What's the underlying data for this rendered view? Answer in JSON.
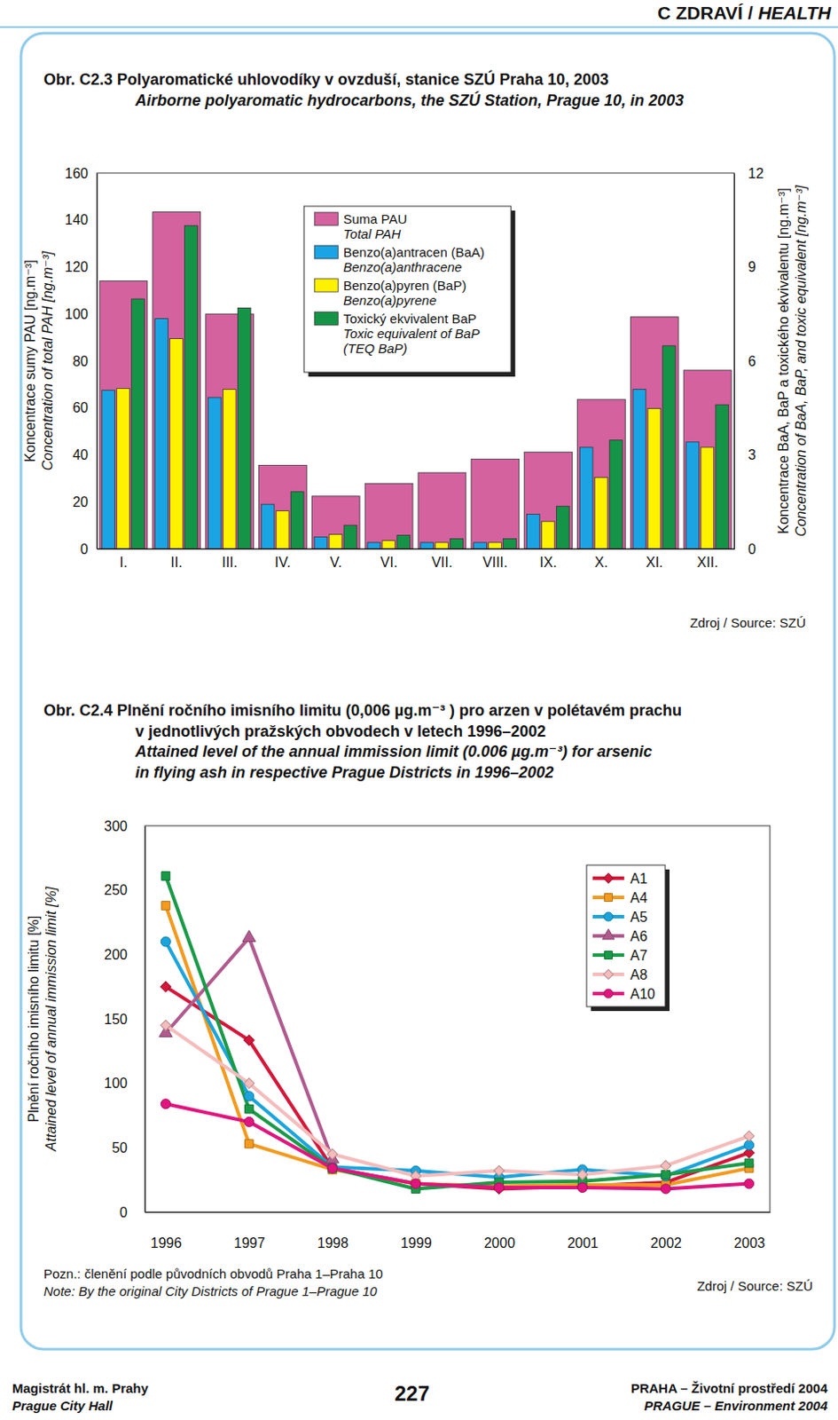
{
  "page": {
    "header": [
      "C ZDRAVÍ /",
      "HEALTH"
    ],
    "footer_left": [
      "Magistrát hl. m. Prahy",
      "Prague City Hall"
    ],
    "page_number": 227,
    "footer_right": [
      "PRAHA – Životní prostředí 2004",
      "PRAGUE – Environment 2004"
    ]
  },
  "chart_data": [
    {
      "type": "bar",
      "title": [
        "Obr. C2.3 Polyaromatické uhlovodíky v ovzduší, stanice SZÚ Praha 10, 2003"
      ],
      "title_en": [
        "Airborne polyaromatic hydrocarbons, the SZÚ Station, Prague 10, in 2003"
      ],
      "categories": [
        "I.",
        "II.",
        "III.",
        "IV.",
        "V.",
        "VI.",
        "VII.",
        "VIII.",
        "IX.",
        "X.",
        "XI.",
        "XII."
      ],
      "ylabel": "Koncentrace sumy PAU [ng.m⁻³]",
      "ylabel_en": "Concentration of total PAH [ng.m⁻³]",
      "y2label": "Koncentrace BaA, BaP a toxického ekvivalentu [ng.m⁻³]",
      "y2label_en": "Concentration of BaA, BaP, and toxic equivalent [ng.m⁻³]",
      "ylim": [
        0,
        160
      ],
      "yticks": [
        0,
        20,
        40,
        60,
        80,
        100,
        120,
        140,
        160
      ],
      "y2lim": [
        0,
        12
      ],
      "y2ticks": [
        0,
        3,
        6,
        9,
        12
      ],
      "grid": false,
      "legend": "top",
      "series": [
        {
          "name": "Suma PAU",
          "name_en": [
            "Total PAH"
          ],
          "color": "#d4629f",
          "values": [
            114,
            143.4,
            100,
            35.5,
            22.4,
            27.8,
            32.4,
            38.2,
            41.2,
            63.6,
            98.7,
            76
          ]
        },
        {
          "name": "Benzo(a)antracen (BaA)",
          "name_en": [
            "Benzo(a)anthracene"
          ],
          "color": "#1ba4e4",
          "axis": "y2",
          "values": [
            5.06,
            7.35,
            4.83,
            1.42,
            0.38,
            0.2,
            0.2,
            0.2,
            1.1,
            3.24,
            5.09,
            3.41
          ]
        },
        {
          "name": "Benzo(a)pyren (BaP)",
          "name_en": [
            "Benzo(a)pyrene"
          ],
          "color": "#fff200",
          "axis": "y2",
          "values": [
            5.12,
            6.71,
            5.09,
            1.21,
            0.46,
            0.26,
            0.2,
            0.2,
            0.87,
            2.28,
            4.48,
            3.24
          ]
        },
        {
          "name": "Toxický ekvivalent BaP",
          "name_en": [
            "Toxic equivalent of BaP",
            "(TEQ BaP)"
          ],
          "color": "#159447",
          "axis": "y2",
          "values": [
            7.98,
            10.32,
            7.69,
            1.82,
            0.75,
            0.43,
            0.32,
            0.32,
            1.36,
            3.47,
            6.48,
            4.6
          ]
        }
      ],
      "source": "Zdroj / Source: SZÚ"
    },
    {
      "type": "line",
      "title": [
        "Obr. C2.4 Plnění ročního imisního limitu (0,006 µg.m⁻³ ) pro arzen v polétavém prachu",
        "v jednotlivých pražských obvodech v letech 1996–2002"
      ],
      "title_en": [
        "Attained level of the annual immission limit (0.006 µg.m⁻³) for arsenic",
        "in flying ash in respective Prague Districts in 1996–2002"
      ],
      "categories": [
        "1996",
        "1997",
        "1998",
        "1999",
        "2000",
        "2001",
        "2002",
        "2003"
      ],
      "ylabel": "Plnění ročního imisního limitu [%]",
      "ylabel_en": "Attained level of annual immission limit [%]",
      "ylim": [
        0,
        300
      ],
      "yticks": [
        0,
        50,
        100,
        150,
        200,
        250,
        300
      ],
      "grid": false,
      "legend": "top right",
      "series": [
        {
          "name": "A1",
          "color": "#d4173a",
          "marker": "diamond",
          "values": [
            175,
            133.5,
            34,
            22,
            18,
            20,
            23,
            46
          ]
        },
        {
          "name": "A4",
          "color": "#f39a1f",
          "marker": "square",
          "values": [
            238,
            53,
            33,
            22,
            20,
            21,
            21,
            34
          ]
        },
        {
          "name": "A5",
          "color": "#1ba4dc",
          "marker": "circle",
          "values": [
            210,
            90,
            35,
            32,
            27,
            33,
            28,
            52
          ]
        },
        {
          "name": "A6",
          "color": "#b05a8e",
          "marker": "triangle",
          "values": [
            139,
            213,
            41,
            null,
            null,
            null,
            null,
            null
          ]
        },
        {
          "name": "A7",
          "color": "#1a9a48",
          "marker": "square",
          "values": [
            261,
            80,
            34,
            18,
            23,
            24,
            29,
            38
          ]
        },
        {
          "name": "A8",
          "color": "#f5bcbc",
          "marker": "diamond",
          "values": [
            145,
            100,
            45,
            28,
            32,
            29,
            36,
            59
          ]
        },
        {
          "name": "A10",
          "color": "#e0157d",
          "marker": "circle",
          "values": [
            84,
            70,
            34,
            22,
            19,
            19,
            18,
            22
          ]
        }
      ],
      "note": "Pozn.: členění podle původních obvodů Praha 1–Praha 10",
      "note_en": "Note: By the original City Districts of Prague 1–Prague 10",
      "source": "Zdroj / Source: SZÚ"
    }
  ]
}
